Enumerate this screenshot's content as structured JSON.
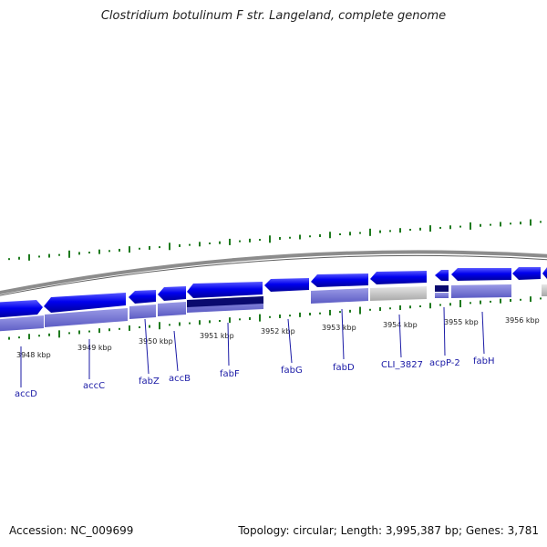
{
  "header": {
    "title": "Clostridium botulinum F str. Langeland, complete genome"
  },
  "footer": {
    "accession": "Accession: NC_009699",
    "summary": "Topology: circular; Length: 3,995,387 bp; Genes: 3,781"
  },
  "scale_labels": [
    "3948 kbp",
    "3949 kbp",
    "3950 kbp",
    "3951 kbp",
    "3952 kbp",
    "3953 kbp",
    "3954 kbp",
    "3955 kbp",
    "3956 kbp"
  ],
  "genes": [
    {
      "name": "accD",
      "color": "#0000ee"
    },
    {
      "name": "accC",
      "color": "#0000ee"
    },
    {
      "name": "fabZ",
      "color": "#0000ee"
    },
    {
      "name": "accB",
      "color": "#0000ee"
    },
    {
      "name": "fabF",
      "color": "#0000ee"
    },
    {
      "name": "fabG",
      "color": "#0000ee"
    },
    {
      "name": "fabD",
      "color": "#0000ee"
    },
    {
      "name": "CLI_3827",
      "color": "#0000ee"
    },
    {
      "name": "acpP-2",
      "color": "#0000ee"
    },
    {
      "name": "fabH",
      "color": "#0000ee"
    }
  ],
  "colors": {
    "gene": "#0000ee",
    "feature_band": "#6f6fd6",
    "highlight_band": "#0a0a6e",
    "pseudo_band": "#bdbdbd",
    "backbone": "#8c8c8c",
    "gc_ticks": "#1e7a1e",
    "label": "#1a1aa6"
  }
}
